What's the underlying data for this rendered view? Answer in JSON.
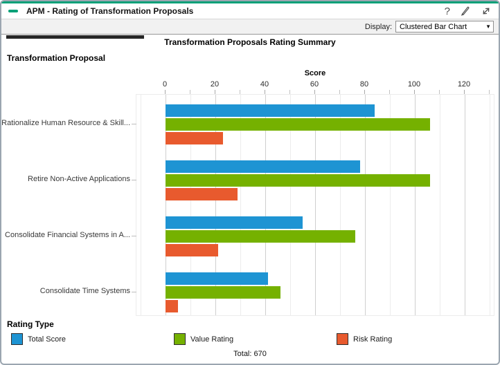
{
  "window": {
    "accent_green": "#00a077",
    "header": {
      "title": "APM - Rating of Transformation Proposals",
      "icons": [
        {
          "name": "help-icon",
          "glyph": "?"
        },
        {
          "name": "edit-pencil-icon"
        },
        {
          "name": "expand-icon"
        }
      ]
    },
    "toolbar": {
      "display_label": "Display:",
      "display_value": "Clustered Bar Chart"
    }
  },
  "chart_data": {
    "type": "bar",
    "orientation": "horizontal",
    "title": "Transformation Proposals Rating Summary",
    "ylabel": "Transformation Proposal",
    "xlabel": "Score",
    "xlim": [
      0,
      130
    ],
    "xticks": [
      0,
      20,
      40,
      60,
      80,
      100,
      120
    ],
    "grid": "on",
    "legend_position": "bottom",
    "legend_title": "Rating Type",
    "categories": [
      "Rationalize Human Resource & Skill...",
      "Retire Non-Active Applications",
      "Consolidate Financial Systems in A...",
      "Consolidate Time Systems"
    ],
    "series": [
      {
        "name": "Total Score",
        "color": "#1e94d3",
        "values": [
          84,
          78,
          55,
          41
        ]
      },
      {
        "name": "Value Rating",
        "color": "#75b100",
        "values": [
          106,
          106,
          76,
          46
        ]
      },
      {
        "name": "Risk Rating",
        "color": "#e85a2e",
        "values": [
          23,
          29,
          21,
          5
        ]
      }
    ],
    "footer_total": "Total: 670"
  },
  "style": {
    "grid_major": "#cfcfcf",
    "grid_minor": "#ececec",
    "tick_minor": "#c2c2c2"
  }
}
